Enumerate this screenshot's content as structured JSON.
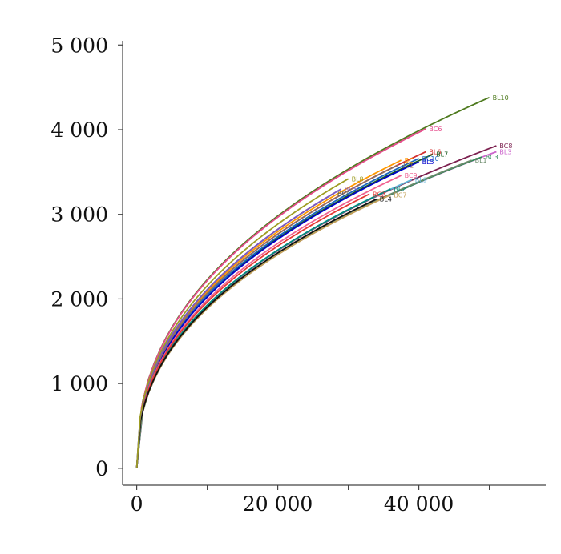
{
  "chart_data": {
    "type": "line",
    "xlim": [
      -2000,
      58000
    ],
    "ylim": [
      -200,
      5050
    ],
    "x_ticks": [
      {
        "value": 0,
        "label": "0"
      },
      {
        "value": 10000,
        "label": ""
      },
      {
        "value": 20000,
        "label": "20 000"
      },
      {
        "value": 30000,
        "label": ""
      },
      {
        "value": 40000,
        "label": "40 000"
      },
      {
        "value": 50000,
        "label": ""
      }
    ],
    "y_ticks": [
      {
        "value": 0,
        "label": "0"
      },
      {
        "value": 1000,
        "label": "1 000"
      },
      {
        "value": 2000,
        "label": "2 000"
      },
      {
        "value": 3000,
        "label": "3 000"
      },
      {
        "value": 4000,
        "label": "4 000"
      },
      {
        "value": 5000,
        "label": "5 000"
      }
    ],
    "grid": false,
    "series": [
      {
        "name": "BL10",
        "color": "#4e7a1e",
        "end": [
          50000,
          4380
        ]
      },
      {
        "name": "BC6",
        "color": "#e64c8c",
        "end": [
          41000,
          4010
        ]
      },
      {
        "name": "BC8",
        "color": "#7b1f4e",
        "end": [
          51000,
          3810
        ]
      },
      {
        "name": "BL3",
        "color": "#cc66cc",
        "end": [
          51000,
          3740
        ]
      },
      {
        "name": "BC3",
        "color": "#2e8b57",
        "end": [
          49000,
          3680
        ]
      },
      {
        "name": "BL1",
        "color": "#6a8a6a",
        "end": [
          47500,
          3640
        ]
      },
      {
        "name": "BL6",
        "color": "#d32f2f",
        "end": [
          41000,
          3740
        ]
      },
      {
        "name": "BL7",
        "color": "#1b5e20",
        "end": [
          42000,
          3710
        ]
      },
      {
        "name": "BC10",
        "color": "#1565c0",
        "end": [
          40000,
          3660
        ]
      },
      {
        "name": "BL5",
        "color": "#0000cc",
        "end": [
          40000,
          3620
        ]
      },
      {
        "name": "BC",
        "color": "#ff9800",
        "end": [
          37500,
          3640
        ]
      },
      {
        "name": "BC1",
        "color": "#8d6e63",
        "end": [
          37000,
          3580
        ]
      },
      {
        "name": "BL9",
        "color": "#5fb4d8",
        "end": [
          39000,
          3410
        ]
      },
      {
        "name": "BC9",
        "color": "#f06292",
        "end": [
          37500,
          3460
        ]
      },
      {
        "name": "BL2",
        "color": "#00897b",
        "end": [
          36000,
          3300
        ]
      },
      {
        "name": "BC2",
        "color": "#e53935",
        "end": [
          33000,
          3240
        ]
      },
      {
        "name": "BC7",
        "color": "#c4a35a",
        "end": [
          36000,
          3230
        ]
      },
      {
        "name": "BL4",
        "color": "#111111",
        "end": [
          34000,
          3180
        ]
      },
      {
        "name": "BC4",
        "color": "#455a64",
        "end": [
          28000,
          3250
        ]
      },
      {
        "name": "BC5",
        "color": "#7e57c2",
        "end": [
          29000,
          3300
        ]
      },
      {
        "name": "BL8",
        "color": "#9e9d24",
        "end": [
          30000,
          3420
        ]
      }
    ]
  }
}
